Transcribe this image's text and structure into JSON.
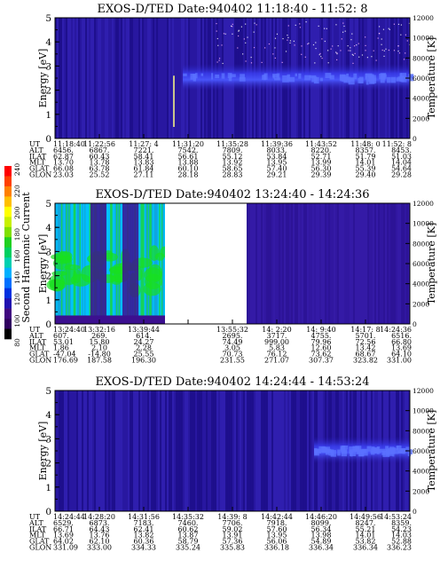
{
  "colorbar": {
    "label": "Second Harmonic Current",
    "ticks": [
      "240",
      "220",
      "200",
      "180",
      "160",
      "140",
      "120",
      "100",
      "80"
    ],
    "range": [
      80,
      240
    ]
  },
  "colors": {
    "background": "#2818a0",
    "dark": "#1c0e8a",
    "bright": "#3a40f0",
    "purple": "#3c1090",
    "green": "#18e020",
    "cyan": "#00d0ff",
    "gap": "#ffffff"
  },
  "chart_data": [
    {
      "type": "heatmap",
      "title": "EXOS-D/TED   Date:940402   11:18:40 - 11:52: 8",
      "ylabel": "Energy [eV]",
      "y2label": "Temperature [K]",
      "ylim": [
        0,
        5
      ],
      "y2lim": [
        0,
        12000
      ],
      "yticks": [
        "0",
        "1",
        "2",
        "3",
        "4",
        "5"
      ],
      "y2ticks": [
        "0",
        "2000",
        "4000",
        "6000",
        "8000",
        "10000",
        "12000"
      ],
      "features": {
        "band_center_ev": 2.5,
        "band_start_fraction": 0.36,
        "spike_fraction": 0.335,
        "spike_top_ev": 2.6
      },
      "table": {
        "labels": [
          "UT",
          "ALT",
          "ILAT",
          "MLT",
          "GLAT",
          "GLON"
        ],
        "columns": [
          [
            "11:18:40",
            "6456.",
            "62.87",
            "13.70",
            "66.08",
            "23.03"
          ],
          [
            "11:22:56",
            "6867.",
            "60.43",
            "13.78",
            "63.78",
            "25.52"
          ],
          [
            "11:27: 4",
            "7221.",
            "58.41",
            "13.83",
            "61.84",
            "27.11"
          ],
          [
            "11:31:20",
            "7542.",
            "56.61",
            "13.88",
            "60.10",
            "28.18"
          ],
          [
            "11:35:28",
            "7809.",
            "55.12",
            "13.92",
            "58.65",
            "28.83"
          ],
          [
            "11:39:36",
            "8033.",
            "53.84",
            "13.95",
            "57.40",
            "29.21"
          ],
          [
            "11:43:52",
            "8220.",
            "52.71",
            "13.99",
            "56.30",
            "29.39"
          ],
          [
            "11:48: 0",
            "8357.",
            "51.79",
            "14.01",
            "55.39",
            "29.40"
          ],
          [
            "11:52: 8",
            "8453.",
            "51.03",
            "14.04",
            "54.64",
            "29.28"
          ]
        ]
      }
    },
    {
      "type": "heatmap",
      "title": "EXOS-D/TED   Date:940402   13:24:40 - 14:24:36",
      "ylabel": "Energy [eV]",
      "y2label": "Temperature [K]",
      "ylim": [
        0,
        5
      ],
      "y2lim": [
        0,
        12000
      ],
      "yticks": [
        "0",
        "1",
        "2",
        "3",
        "4",
        "5"
      ],
      "y2ticks": [
        "0",
        "2000",
        "4000",
        "6000",
        "8000",
        "10000",
        "12000"
      ],
      "features": {
        "data_end_fraction": 0.31,
        "gap_end_fraction": 0.54
      },
      "table": {
        "labels": [
          "UT",
          "ALT",
          "ILAT",
          "MLT",
          "GLAT",
          "GLON"
        ],
        "columns": [
          [
            "13:24:40",
            "607.",
            "53.01",
            "1.86",
            "-47.04",
            "176.69"
          ],
          [
            "13:32:16",
            "269.",
            "15.80",
            "2.10",
            "-14.80",
            "187.58"
          ],
          [
            "13:39:44",
            "614.",
            "24.27",
            "2.28",
            "25.55",
            "196.30"
          ],
          [
            "",
            "",
            "",
            "",
            "",
            ""
          ],
          [
            "13:55:32",
            "2695.",
            "74.49",
            "3.05",
            "70.73",
            "231.55"
          ],
          [
            "14: 2:20",
            "3717.",
            "999.00",
            "5.83",
            "76.12",
            "271.07"
          ],
          [
            "14: 9:40",
            "4755.",
            "79.96",
            "12.60",
            "73.62",
            "307.37"
          ],
          [
            "14:17: 8",
            "5701.",
            "72.56",
            "13.42",
            "68.67",
            "323.82"
          ],
          [
            "14:24:36",
            "6516.",
            "66.80",
            "13.69",
            "64.10",
            "331.00"
          ]
        ]
      }
    },
    {
      "type": "heatmap",
      "title": "EXOS-D/TED   Date:940402   14:24:44 - 14:53:24",
      "ylabel": "Energy [eV]",
      "y2label": "Temperature [K]",
      "ylim": [
        0,
        5
      ],
      "y2lim": [
        0,
        12000
      ],
      "yticks": [
        "0",
        "1",
        "2",
        "3",
        "4",
        "5"
      ],
      "y2ticks": [
        "0",
        "2000",
        "4000",
        "6000",
        "8000",
        "10000",
        "12000"
      ],
      "features": {
        "band_center_ev": 2.5,
        "band_start_fraction": 0.73
      },
      "table": {
        "labels": [
          "UT",
          "ALT",
          "ILAT",
          "MLT",
          "GLAT",
          "GLON"
        ],
        "columns": [
          [
            "14:24:44",
            "6529.",
            "66.71",
            "13.69",
            "64.02",
            "331.09"
          ],
          [
            "14:28:20",
            "6873.",
            "64.43",
            "13.76",
            "62.10",
            "333.00"
          ],
          [
            "14:31:56",
            "7183.",
            "62.41",
            "13.82",
            "60.36",
            "334.33"
          ],
          [
            "14:35:32",
            "7460.",
            "60.62",
            "13.87",
            "58.79",
            "335.24"
          ],
          [
            "14:39: 8",
            "7706.",
            "59.02",
            "13.91",
            "57.36",
            "335.83"
          ],
          [
            "14:42:44",
            "7918.",
            "57.60",
            "13.95",
            "56.06",
            "336.18"
          ],
          [
            "14:46:20",
            "8099.",
            "56.34",
            "13.98",
            "54.89",
            "336.34"
          ],
          [
            "14:49:56",
            "8247.",
            "55.21",
            "14.01",
            "53.82",
            "336.34"
          ],
          [
            "14:53:24",
            "8359.",
            "54.23",
            "14.03",
            "52.88",
            "336.23"
          ]
        ]
      }
    }
  ]
}
